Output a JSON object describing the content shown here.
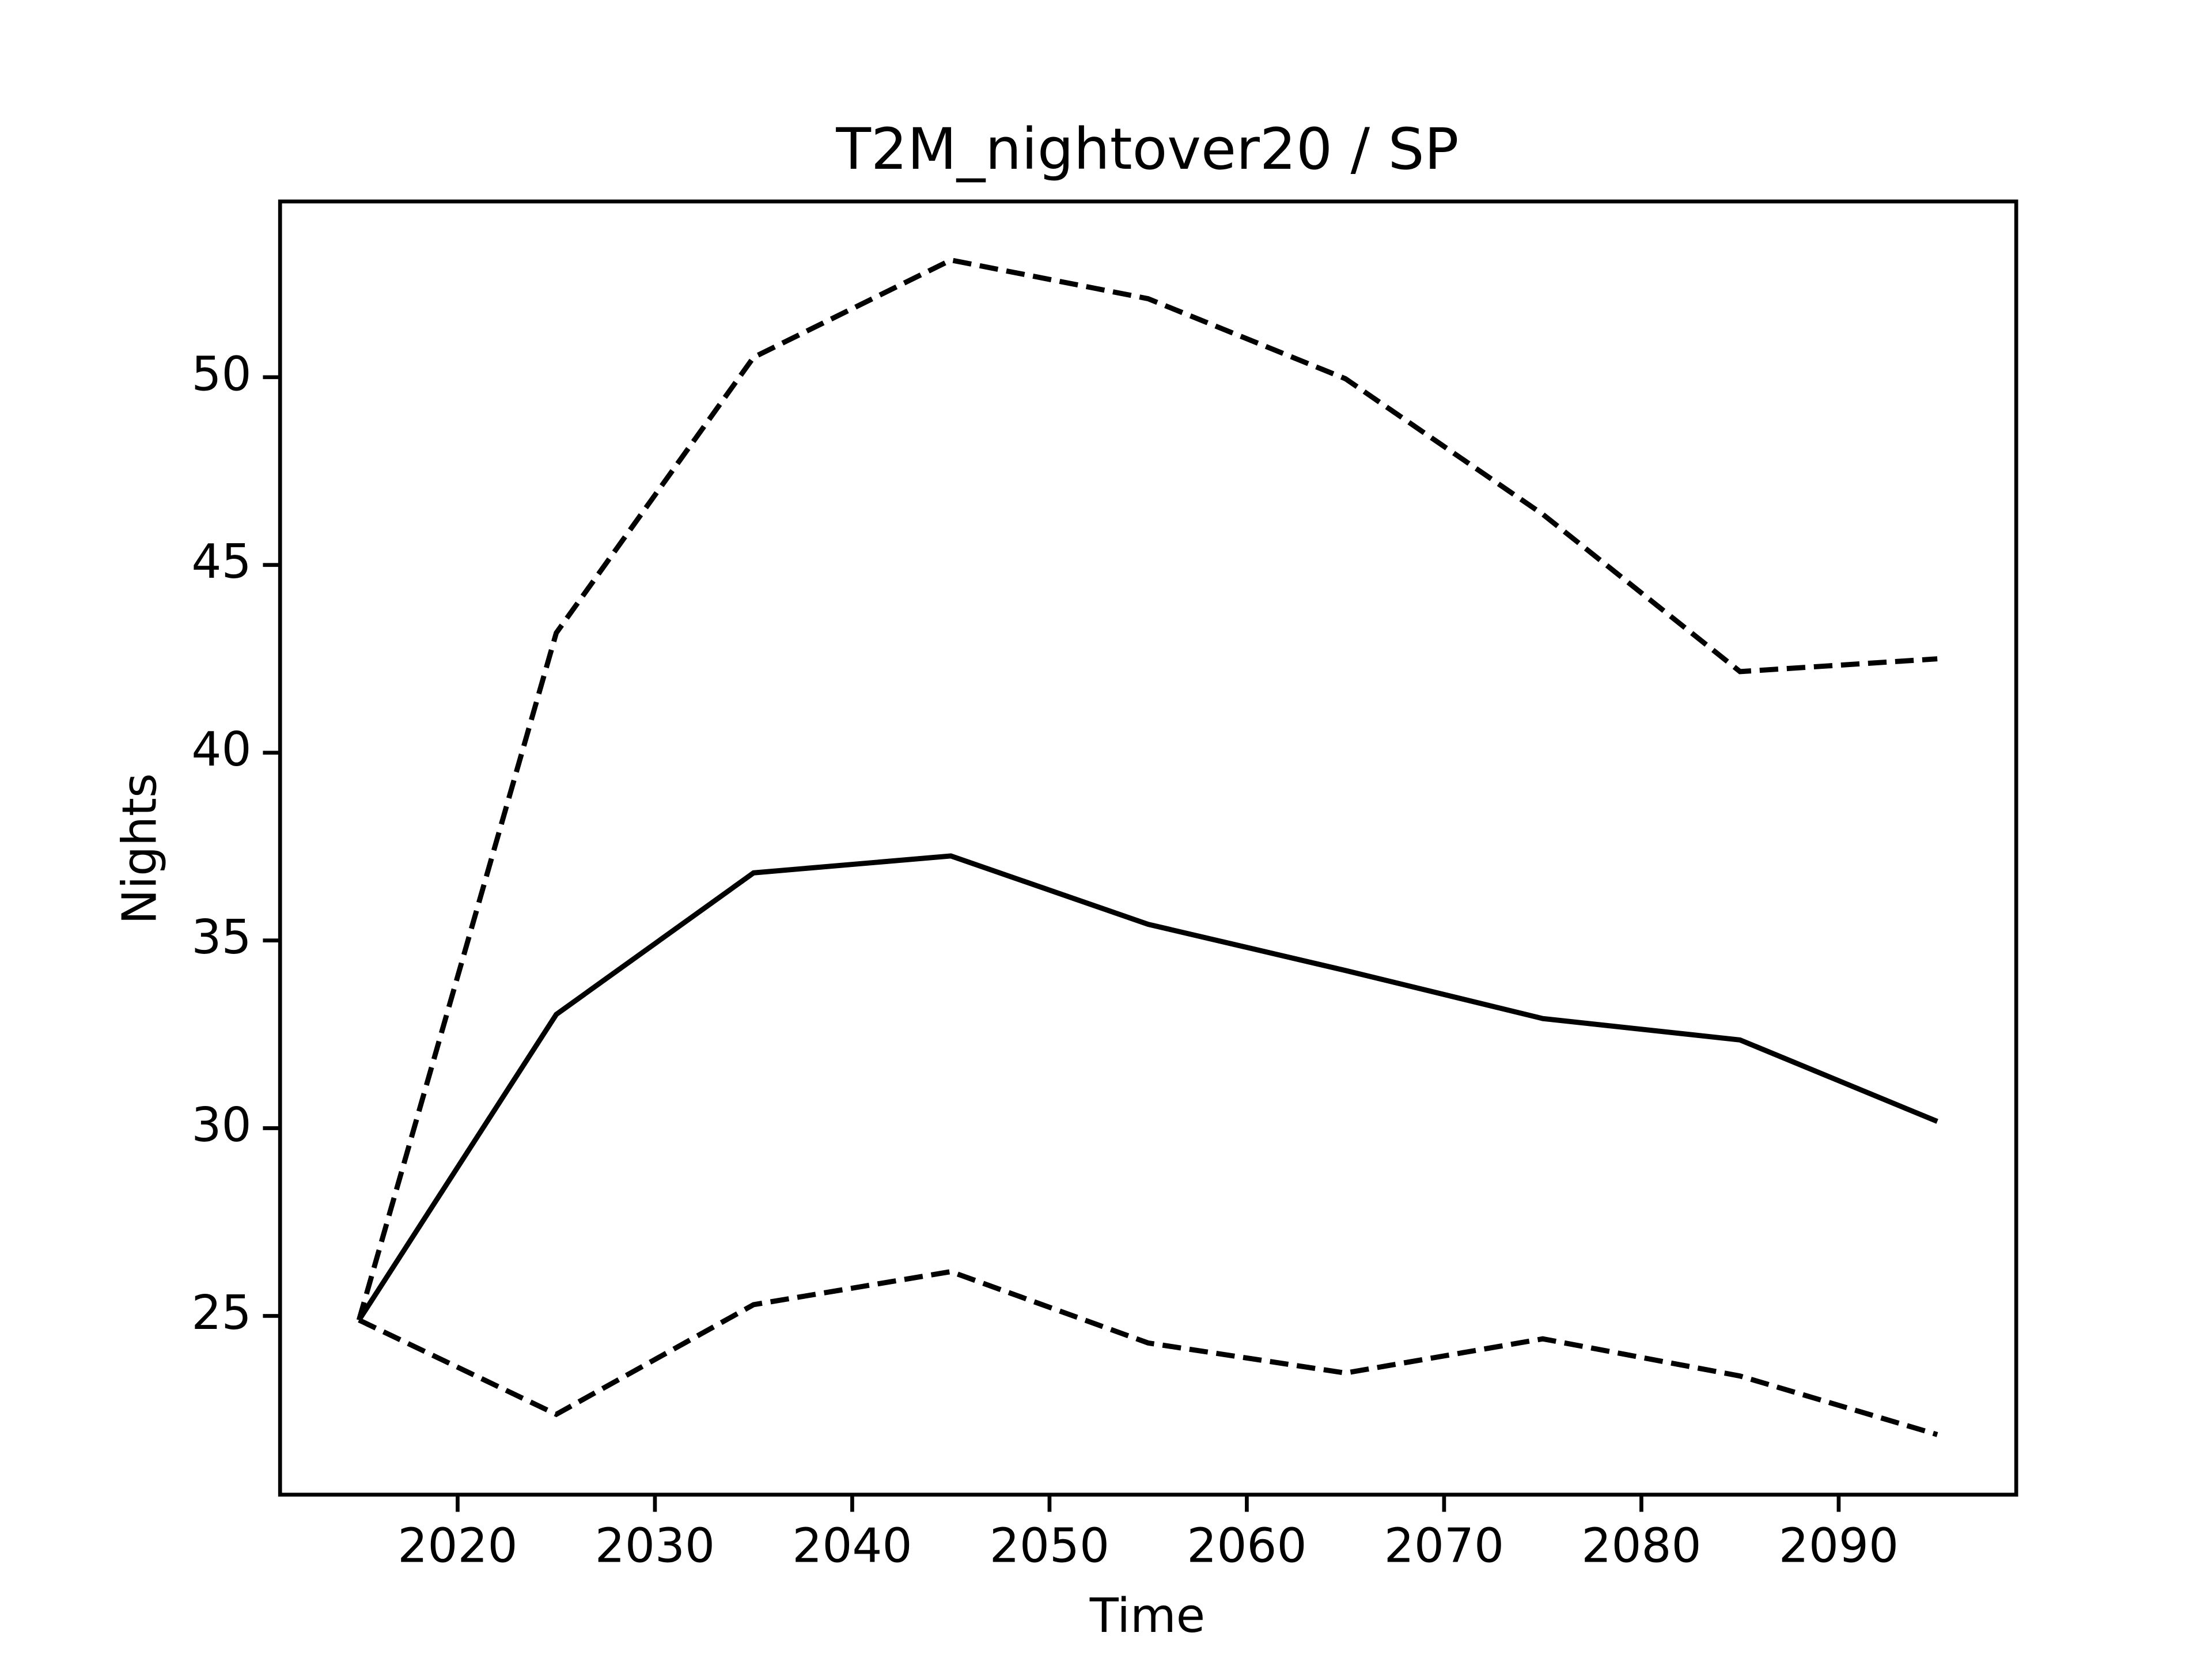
{
  "chart_data": {
    "type": "line",
    "title": "T2M_nightover20 / SP",
    "x_label": "Time",
    "y_label": "Nights",
    "x": [
      2015,
      2025,
      2035,
      2045,
      2055,
      2065,
      2075,
      2085,
      2095
    ],
    "series": [
      {
        "color": "#000000",
        "linestyle": "solid",
        "values": [
          24.89,
          33.03,
          36.8,
          37.25,
          35.43,
          34.2,
          32.92,
          32.35,
          30.18
        ]
      },
      {
        "color": "#000000",
        "linestyle": "dashed",
        "values": [
          24.89,
          43.19,
          50.53,
          53.12,
          52.09,
          49.96,
          46.35,
          42.16,
          42.5
        ]
      },
      {
        "color": "#000000",
        "linestyle": "dashed",
        "values": [
          24.89,
          22.38,
          25.3,
          26.18,
          24.28,
          23.48,
          24.39,
          23.4,
          21.84
        ]
      }
    ],
    "xlim": [
      2011,
      2099
    ],
    "xticks": [
      2020,
      2030,
      2040,
      2050,
      2060,
      2070,
      2080,
      2090
    ],
    "ylim": [
      20.24,
      54.68
    ],
    "yticks": [
      25,
      30,
      35,
      40,
      45,
      50
    ],
    "grid": false
  }
}
